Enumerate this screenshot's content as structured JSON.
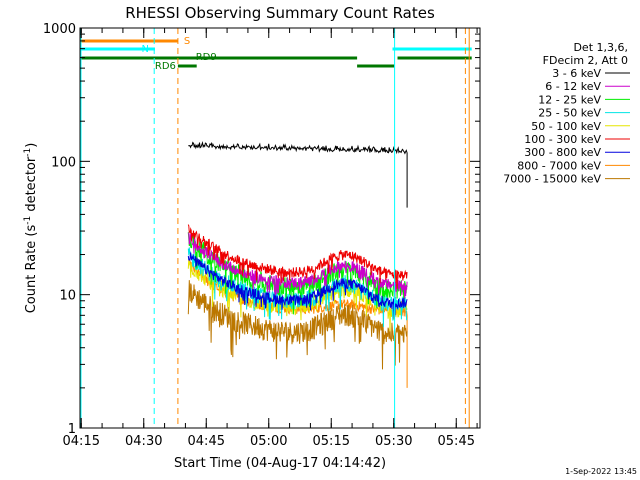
{
  "chart_data": {
    "type": "line",
    "title": "RHESSI Observing Summary Count Rates",
    "xlabel": "Start Time (04-Aug-17 04:14:42)",
    "ylabel_main": "Count Rate (s",
    "ylabel_sup1": "-1",
    "ylabel_mid": " detector",
    "ylabel_sup2": "-1",
    "ylabel_end": ")",
    "yscale": "log",
    "xlim_minutes": [
      0,
      96
    ],
    "ylim": [
      1,
      1000
    ],
    "x_ticks": [
      {
        "minute": 0.3,
        "label": "04:15"
      },
      {
        "minute": 15.3,
        "label": "04:30"
      },
      {
        "minute": 30.3,
        "label": "04:45"
      },
      {
        "minute": 45.3,
        "label": "05:00"
      },
      {
        "minute": 60.3,
        "label": "05:15"
      },
      {
        "minute": 75.3,
        "label": "05:30"
      },
      {
        "minute": 90.3,
        "label": "05:45"
      }
    ],
    "y_ticks": [
      {
        "value": 1,
        "label": "1"
      },
      {
        "value": 10,
        "label": "10"
      },
      {
        "value": 100,
        "label": "100"
      },
      {
        "value": 1000,
        "label": "1000"
      }
    ],
    "legend": {
      "position": "right",
      "header1": "Det 1,3,6,",
      "header2": "FDecim 2, Att 0",
      "entries": [
        {
          "label": "3 - 6 keV",
          "color": "#000000"
        },
        {
          "label": "6 - 12 keV",
          "color": "#cc00cc"
        },
        {
          "label": "12 - 25 keV",
          "color": "#00ee00"
        },
        {
          "label": "25 - 50 keV",
          "color": "#00e5e5"
        },
        {
          "label": "50 - 100 keV",
          "color": "#e5e500"
        },
        {
          "label": "100 - 300 keV",
          "color": "#ee0000"
        },
        {
          "label": "300 - 800 keV",
          "color": "#0000dd"
        },
        {
          "label": "800 - 7000 keV",
          "color": "#ff8800"
        },
        {
          "label": "7000 - 15000 keV",
          "color": "#bb7700"
        }
      ]
    },
    "time_span_minutes": [
      26,
      78.5
    ],
    "series": [
      {
        "name": "3 - 6 keV",
        "color": "#000000",
        "start": 130,
        "end": 118,
        "shape": "flat",
        "noise": 0.03,
        "density": 1.4
      },
      {
        "name": "800 - 7000 keV",
        "color": "#ff8800",
        "start": 17,
        "end": 7.5,
        "shape": "orange",
        "noise": 0.09
      },
      {
        "name": "7000 - 15000 keV",
        "color": "#bb7700",
        "start": 11,
        "end": 6.5,
        "shape": "dip",
        "noise": 0.2
      },
      {
        "name": "50 - 100 keV",
        "color": "#e5e500",
        "start": 17,
        "end": 10,
        "shape": "dip",
        "noise": 0.14
      },
      {
        "name": "25 - 50 keV",
        "color": "#00e5e5",
        "start": 20,
        "end": 11,
        "shape": "dip",
        "noise": 0.15
      },
      {
        "name": "12 - 25 keV",
        "color": "#00ee00",
        "start": 27,
        "end": 14,
        "shape": "dip",
        "noise": 0.16
      },
      {
        "name": "6 - 12 keV",
        "color": "#cc00cc",
        "start": 27,
        "end": 15,
        "shape": "dip",
        "noise": 0.1
      },
      {
        "name": "300 - 800 keV",
        "color": "#0000dd",
        "start": 20,
        "end": 11,
        "shape": "dip",
        "noise": 0.09
      },
      {
        "name": "100 - 300 keV",
        "color": "#ee0000",
        "start": 32,
        "end": 18,
        "shape": "dip",
        "noise": 0.09
      }
    ],
    "state_bars": [
      {
        "name": "attenuator-bar",
        "label": "S",
        "color": "#ff8800",
        "row": 1,
        "segments": [
          [
            0,
            23.5
          ]
        ]
      },
      {
        "name": "night-bar",
        "label": "N",
        "color": "#00ffff",
        "row": 2,
        "segments": [
          [
            0,
            18
          ],
          [
            75,
            94
          ]
        ]
      },
      {
        "name": "saa-bar",
        "label": "RD9",
        "color": "#007700",
        "row": 3,
        "segments": [
          [
            0,
            66.5
          ],
          [
            76.2,
            94
          ]
        ]
      },
      {
        "name": "rd6-bar",
        "label": "RD6",
        "color": "#007700",
        "row": 4,
        "segments": [
          [
            23.5,
            28
          ],
          [
            66.5,
            75.4
          ]
        ]
      }
    ],
    "vertical_markers": [
      {
        "minute": 0,
        "color": "#00ffff",
        "style": "solid"
      },
      {
        "minute": 17.8,
        "color": "#00ffff",
        "style": "dashed"
      },
      {
        "minute": 23.5,
        "color": "#ff8800",
        "style": "dashed"
      },
      {
        "minute": 75.5,
        "color": "#00ffff",
        "style": "solid"
      },
      {
        "minute": 92.5,
        "color": "#ff8800",
        "style": "dashed"
      },
      {
        "minute": 93.4,
        "color": "#ff8800",
        "style": "solid"
      }
    ]
  },
  "footer": {
    "timestamp": "1-Sep-2022 13:45"
  }
}
